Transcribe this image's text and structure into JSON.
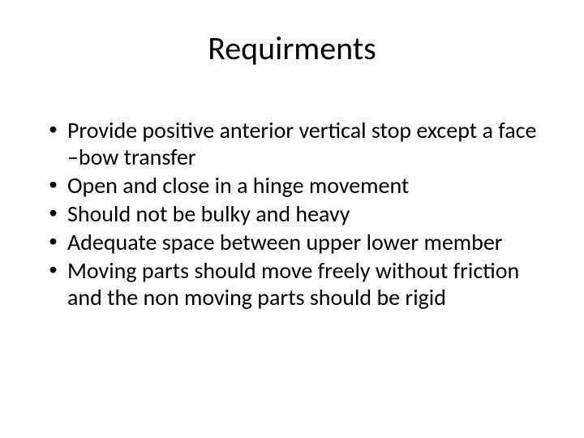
{
  "slide": {
    "title": "Requirments",
    "title_fontsize": 40,
    "body_fontsize": 28,
    "text_color": "#000000",
    "background_color": "#ffffff",
    "bullets": [
      "Provide positive anterior vertical stop except a face –bow transfer",
      "Open and close in a hinge movement",
      "Should not be  bulky and heavy",
      "Adequate space between upper lower member",
      "Moving parts should move freely without friction and the non moving parts should be rigid"
    ]
  }
}
